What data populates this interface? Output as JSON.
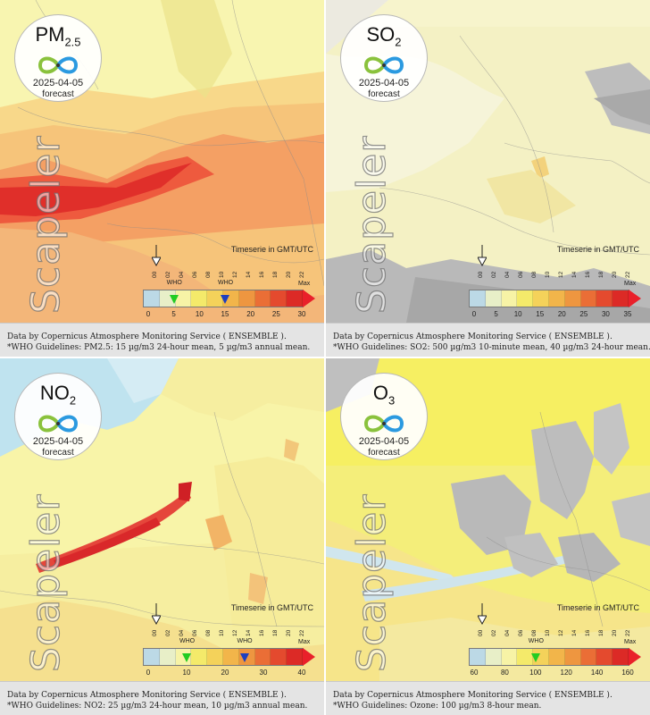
{
  "brand": "Scapeler",
  "timeseries_label": "Timeserie in GMT/UTC",
  "hours": [
    "00",
    "02",
    "04",
    "06",
    "08",
    "10",
    "12",
    "14",
    "16",
    "18",
    "20",
    "22"
  ],
  "panels": [
    {
      "title_main": "PM",
      "title_sub": "2.5",
      "date": "2025-04-05",
      "mode": "forecast",
      "scale_ticks": [
        "0",
        "5",
        "10",
        "15",
        "20",
        "25",
        "30"
      ],
      "max_label": "Max",
      "who_labels": [
        "WHO",
        "WHO"
      ],
      "who_marker_colors": [
        "#22cc22",
        "#1d3fbf"
      ],
      "who_values": [
        5,
        15
      ],
      "scale_max": 30,
      "caption_line1": "Data by Copernicus Atmosphere Monitoring Service ( ENSEMBLE ).",
      "caption_line2": "*WHO Guidelines: PM2.5: 15 µg/m3 24-hour mean, 5 µg/m3 annual mean."
    },
    {
      "title_main": "SO",
      "title_sub": "2",
      "date": "2025-04-05",
      "mode": "forecast",
      "scale_ticks": [
        "0",
        "5",
        "10",
        "15",
        "20",
        "25",
        "30",
        "35"
      ],
      "max_label": "Max",
      "who_labels": [],
      "who_marker_colors": [],
      "who_values": [],
      "scale_max": 35,
      "caption_line1": "Data by Copernicus Atmosphere Monitoring Service ( ENSEMBLE ).",
      "caption_line2": "*WHO Guidelines: SO2: 500 µg/m3 10-minute mean, 40 µg/m3 24-hour mean."
    },
    {
      "title_main": "NO",
      "title_sub": "2",
      "date": "2025-04-05",
      "mode": "forecast",
      "scale_ticks": [
        "0",
        "10",
        "20",
        "30",
        "40"
      ],
      "max_label": "Max",
      "who_labels": [
        "WHO",
        "WHO"
      ],
      "who_marker_colors": [
        "#22cc22",
        "#1d3fbf"
      ],
      "who_values": [
        10,
        25
      ],
      "scale_max": 40,
      "caption_line1": "Data by Copernicus Atmosphere Monitoring Service ( ENSEMBLE ).",
      "caption_line2": "*WHO Guidelines: NO2: 25 µg/m3 24-hour mean, 10 µg/m3 annual mean."
    },
    {
      "title_main": "O",
      "title_sub": "3",
      "date": "2025-04-05",
      "mode": "forecast",
      "scale_ticks": [
        "60",
        "80",
        "100",
        "120",
        "140",
        "160"
      ],
      "max_label": "Max",
      "who_labels": [
        "WHO"
      ],
      "who_marker_colors": [
        "#22cc22"
      ],
      "who_values": [
        100
      ],
      "scale_max": 160,
      "caption_line1": "Data by Copernicus Atmosphere Monitoring Service ( ENSEMBLE ).",
      "caption_line2": "*WHO Guidelines: Ozone: 100 µg/m3 8-hour mean."
    }
  ]
}
